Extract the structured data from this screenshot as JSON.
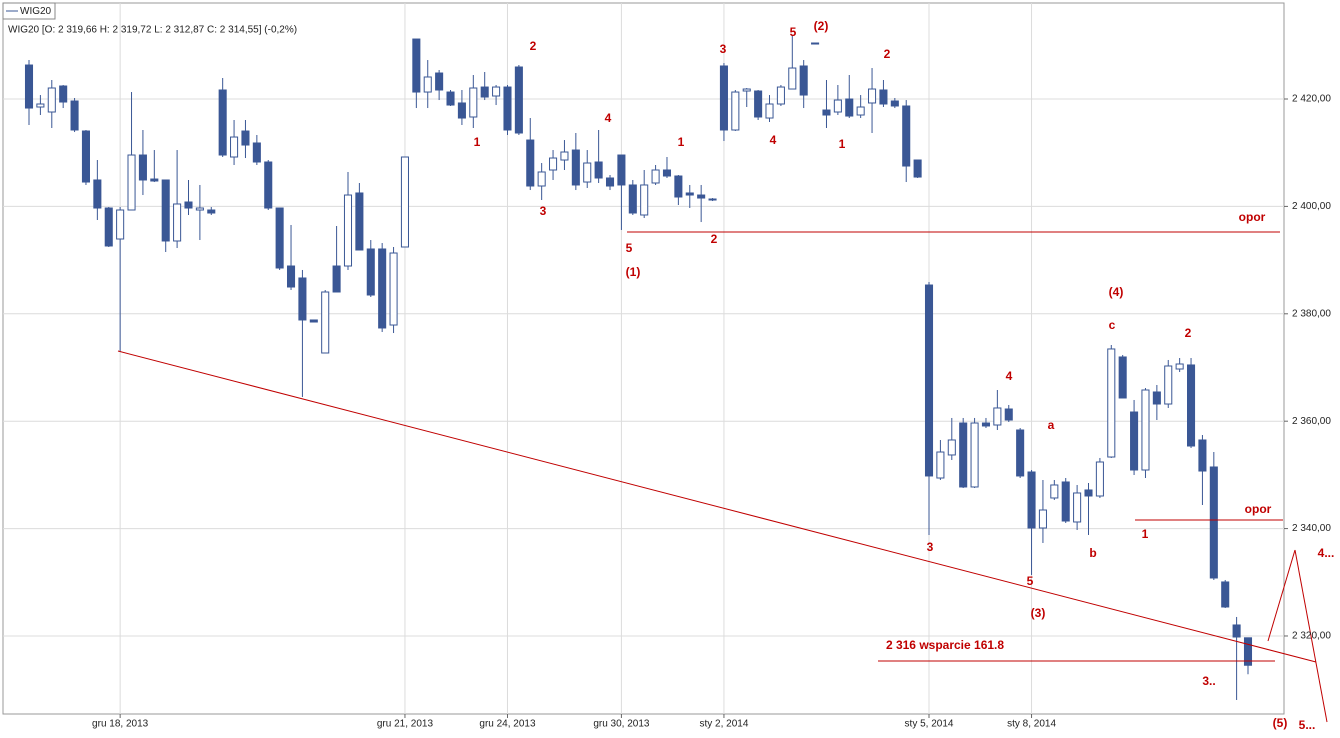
{
  "chart_data": {
    "type": "candlestick",
    "legend_label": "WIG20",
    "info": "WIG20 [O: 2 319,66  H: 2 319,72  L: 2 312,87  C: 2 314,55] (-0,2%)",
    "categories": [
      null,
      null,
      null,
      null,
      null,
      null,
      null,
      null,
      "gru 18, 2013",
      null,
      null,
      null,
      null,
      null,
      null,
      null,
      null,
      null,
      null,
      null,
      null,
      null,
      null,
      null,
      null,
      null,
      null,
      null,
      null,
      null,
      null,
      null,
      null,
      "gru 21, 2013",
      null,
      null,
      null,
      null,
      null,
      null,
      null,
      null,
      "gru 24, 2013",
      null,
      null,
      null,
      null,
      null,
      null,
      null,
      null,
      null,
      "gru 30, 2013",
      null,
      null,
      null,
      null,
      null,
      null,
      null,
      null,
      "sty 2, 2014",
      null,
      null,
      null,
      null,
      null,
      null,
      null,
      null,
      null,
      null,
      null,
      null,
      null,
      null,
      null,
      null,
      null,
      "sty 5, 2014",
      null,
      null,
      null,
      null,
      null,
      null,
      null,
      null,
      "sty 8, 2014",
      null,
      null,
      null,
      null,
      null,
      null,
      null,
      null,
      null,
      null,
      null,
      null,
      null,
      null,
      null,
      null,
      null,
      null,
      null
    ],
    "open": [
      2426.33,
      2418.51,
      2417.58,
      2422.42,
      2419.63,
      2414.04,
      2404.92,
      2399.7,
      2393.93,
      2399.33,
      2409.57,
      2405.1,
      2404.92,
      2393.56,
      2400.82,
      2399.33,
      2399.33,
      2421.68,
      2409.2,
      2414.04,
      2411.81,
      2408.27,
      2399.7,
      2388.9,
      2386.67,
      2378.85,
      2372.7,
      2388.9,
      2388.9,
      2402.5,
      2392.07,
      2392.07,
      2377.91,
      2392.44,
      2431.17,
      2421.3,
      2424.84,
      2421.3,
      2419.26,
      2416.65,
      2422.23,
      2420.56,
      2422.23,
      2425.96,
      2412.36,
      2403.8,
      2406.78,
      2408.64,
      2410.5,
      2404.54,
      2408.27,
      2405.29,
      2409.57,
      2403.99,
      2398.4,
      2404.36,
      2406.78,
      2405.66,
      2402.5,
      2402.12,
      2401.38,
      2426.15,
      2414.23,
      2421.49,
      2421.49,
      2416.46,
      2419.07,
      2421.86,
      2426.15,
      2430.43,
      2417.95,
      2417.58,
      2420.0,
      2417.02,
      2419.26,
      2421.68,
      2419.63,
      2418.7,
      2408.64,
      2385.36,
      2349.42,
      2353.71,
      2359.66,
      2347.75,
      2359.66,
      2359.29,
      2362.27,
      2358.36,
      2350.54,
      2340.11,
      2345.7,
      2348.68,
      2341.23,
      2347.19,
      2346.07,
      2353.33,
      2371.96,
      2361.71,
      2350.91,
      2365.44,
      2363.2,
      2369.72,
      2370.47,
      2356.5,
      2351.47,
      2330.06,
      2322.05,
      2319.66
    ],
    "high": [
      2427.26,
      2420.74,
      2423.54,
      2422.61,
      2420.19,
      2414.23,
      2408.64,
      2399.89,
      2399.89,
      2421.3,
      2414.23,
      2410.5,
      2404.92,
      2410.5,
      2404.92,
      2403.99,
      2399.89,
      2423.91,
      2416.09,
      2416.09,
      2413.3,
      2408.64,
      2399.7,
      2396.54,
      2388.16,
      2378.85,
      2384.43,
      2396.35,
      2406.41,
      2404.36,
      2393.74,
      2393.18,
      2392.44,
      2409.2,
      2431.17,
      2427.26,
      2425.4,
      2421.68,
      2421.68,
      2424.47,
      2425.03,
      2422.61,
      2422.61,
      2426.33,
      2416.46,
      2408.08,
      2410.5,
      2412.36,
      2413.67,
      2410.5,
      2414.23,
      2405.85,
      2409.57,
      2404.92,
      2406.78,
      2407.71,
      2409.2,
      2405.85,
      2403.99,
      2403.99,
      2401.56,
      2426.7,
      2421.68,
      2422.05,
      2421.68,
      2420.74,
      2422.61,
      2431.92,
      2427.26,
      2430.43,
      2423.54,
      2422.61,
      2424.47,
      2420.74,
      2425.77,
      2423.54,
      2420.19,
      2419.81,
      2408.64,
      2385.92,
      2356.5,
      2360.6,
      2360.6,
      2360.6,
      2360.6,
      2365.81,
      2363.02,
      2358.73,
      2350.91,
      2349.05,
      2349.05,
      2349.42,
      2348.12,
      2348.49,
      2353.15,
      2374.19,
      2372.33,
      2363.95,
      2366.18,
      2366.74,
      2371.4,
      2371.77,
      2371.77,
      2357.43,
      2354.26,
      2330.43,
      2323.54,
      2319.72
    ],
    "low": [
      2415.16,
      2417.02,
      2414.6,
      2418.32,
      2413.85,
      2403.99,
      2397.47,
      2392.44,
      2372.89,
      2399.33,
      2402.12,
      2404.54,
      2391.51,
      2392.25,
      2398.4,
      2393.74,
      2398.4,
      2409.2,
      2407.71,
      2409.01,
      2407.71,
      2399.33,
      2388.16,
      2384.43,
      2364.51,
      2378.47,
      2372.7,
      2384.06,
      2388.16,
      2391.88,
      2383.13,
      2376.61,
      2376.42,
      2392.44,
      2418.32,
      2418.32,
      2419.81,
      2418.7,
      2415.16,
      2414.6,
      2419.81,
      2418.88,
      2413.3,
      2413.3,
      2403.05,
      2401.19,
      2404.92,
      2406.78,
      2403.05,
      2403.43,
      2404.36,
      2403.05,
      2395.61,
      2398.4,
      2397.84,
      2403.99,
      2405.29,
      2400.26,
      2399.7,
      2397.09,
      2401.0,
      2412.18,
      2414.04,
      2418.51,
      2416.09,
      2415.72,
      2418.7,
      2421.86,
      2418.32,
      2430.24,
      2414.6,
      2417.02,
      2416.46,
      2416.46,
      2413.67,
      2418.51,
      2418.32,
      2404.54,
      2405.29,
      2338.81,
      2349.05,
      2352.77,
      2347.56,
      2347.56,
      2358.73,
      2358.36,
      2359.85,
      2349.42,
      2331.36,
      2337.32,
      2345.33,
      2341.04,
      2339.74,
      2338.81,
      2345.7,
      2353.15,
      2364.32,
      2349.98,
      2349.42,
      2360.22,
      2362.46,
      2369.16,
      2355.01,
      2344.39,
      2330.43,
      2325.21,
      2308.08,
      2312.87
    ],
    "close": [
      2418.32,
      2419.07,
      2422.05,
      2419.44,
      2414.23,
      2404.54,
      2399.7,
      2392.63,
      2399.33,
      2409.57,
      2404.92,
      2404.73,
      2393.56,
      2400.45,
      2399.7,
      2399.7,
      2398.77,
      2409.57,
      2412.92,
      2411.43,
      2408.27,
      2399.7,
      2388.53,
      2384.99,
      2378.85,
      2378.47,
      2384.06,
      2384.06,
      2402.12,
      2391.88,
      2383.5,
      2377.36,
      2391.32,
      2409.2,
      2421.3,
      2424.1,
      2421.68,
      2418.88,
      2416.46,
      2422.05,
      2420.37,
      2422.23,
      2414.23,
      2413.67,
      2403.8,
      2406.41,
      2409.01,
      2410.13,
      2403.99,
      2408.08,
      2405.29,
      2403.8,
      2403.99,
      2398.77,
      2403.99,
      2406.78,
      2405.66,
      2401.75,
      2402.12,
      2401.56,
      2401.19,
      2414.23,
      2421.3,
      2421.86,
      2416.65,
      2419.07,
      2422.23,
      2425.77,
      2420.74,
      2430.24,
      2417.02,
      2419.81,
      2416.83,
      2418.51,
      2421.86,
      2419.07,
      2418.7,
      2407.52,
      2405.47,
      2349.8,
      2354.26,
      2356.5,
      2347.75,
      2359.66,
      2359.11,
      2362.46,
      2360.22,
      2349.8,
      2340.11,
      2343.46,
      2348.12,
      2341.41,
      2346.63,
      2346.07,
      2352.4,
      2373.45,
      2364.32,
      2350.91,
      2365.81,
      2363.2,
      2370.28,
      2370.65,
      2355.38,
      2350.72,
      2330.8,
      2325.4,
      2319.81,
      2314.55
    ],
    "down_color": "#3a5795",
    "up_color": "#ffffff",
    "edge_color": "#3a5795",
    "annotation_color": "#c00000",
    "ylim": [
      2305.47,
      2437.88
    ],
    "yticks": [
      {
        "value": 2320,
        "label": "2 320,00"
      },
      {
        "value": 2340,
        "label": "2 340,00"
      },
      {
        "value": 2360,
        "label": "2 360,00"
      },
      {
        "value": 2380,
        "label": "2 380,00"
      },
      {
        "value": 2400,
        "label": "2 400,00"
      },
      {
        "value": 2420,
        "label": "2 420,00"
      }
    ],
    "grid": true,
    "annotations": [
      "2",
      "1",
      "3",
      "4",
      "5",
      "(1)",
      "2",
      "1",
      "3",
      "5",
      "(2)",
      "4",
      "2",
      "1",
      "3",
      "5",
      "(3)",
      "4",
      "a",
      "b",
      "(4)",
      "c",
      "2",
      "1",
      "opor",
      "opor",
      "2 316 wsparcie 161.8",
      "3..",
      "(5)",
      "5...",
      "4..."
    ]
  }
}
